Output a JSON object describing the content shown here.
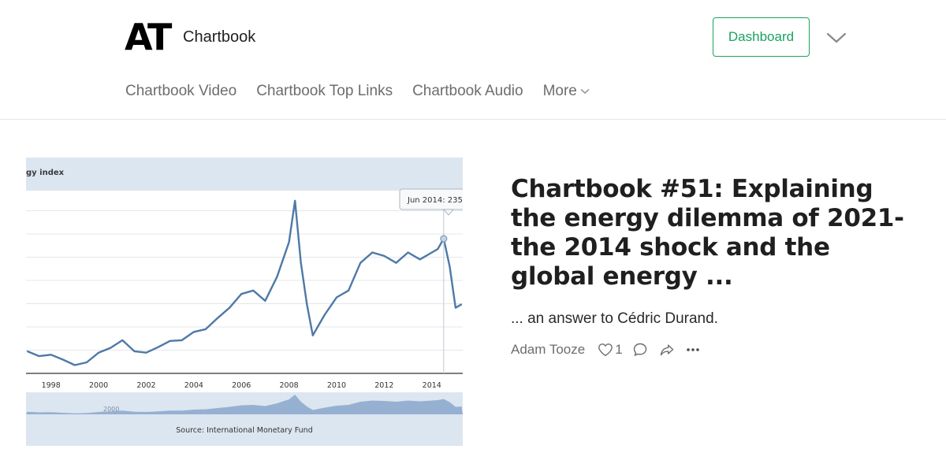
{
  "header": {
    "logo": "AT",
    "publication": "Chartbook",
    "dashboard_label": "Dashboard",
    "menu_icon": "chevron-down-icon"
  },
  "nav": {
    "items": [
      "Chartbook Video",
      "Chartbook Top Links",
      "Chartbook Audio"
    ],
    "more_label": "More"
  },
  "post": {
    "title": "Chartbook #51: Explaining the energy dilemma of 2021- the 2014 shock and the global energy ...",
    "subtitle": "... an answer to Cédric Durand.",
    "author": "Adam Tooze",
    "like_count": "1"
  },
  "chart_data": {
    "type": "line",
    "title": "gy index",
    "source": "Source: International Monetary Fund",
    "tooltip": "Jun 2014: 235.1",
    "x_tick_labels": [
      "1998",
      "2000",
      "2002",
      "2004",
      "2006",
      "2008",
      "2010",
      "2012",
      "2014"
    ],
    "navigator_label": "2000",
    "colors": {
      "line": "#4e79a7",
      "plot_bg": "#ffffff",
      "frame_bg": "#dce6f1",
      "navigator_fill": "#8aa6cc"
    },
    "series": [
      {
        "x": [
          1997.0,
          1997.5,
          1998.0,
          1998.5,
          1999.0,
          1999.5,
          2000.0,
          2000.5,
          2001.0,
          2001.5,
          2002.0,
          2002.5,
          2003.0,
          2003.5,
          2004.0,
          2004.5,
          2005.0,
          2005.5,
          2006.0,
          2006.5,
          2007.0,
          2007.5,
          2008.0,
          2008.25,
          2008.5,
          2008.75,
          2009.0,
          2009.25,
          2009.5,
          2010.0,
          2010.5,
          2011.0,
          2011.5,
          2012.0,
          2012.5,
          2013.0,
          2013.5,
          2014.0,
          2014.25,
          2014.5,
          2014.75,
          2015.0,
          2015.25
        ],
        "y": [
          72,
          65,
          67,
          60,
          52,
          56,
          70,
          77,
          88,
          72,
          70,
          78,
          87,
          88,
          100,
          104,
          120,
          135,
          155,
          160,
          145,
          180,
          230,
          290,
          200,
          140,
          95,
          110,
          125,
          150,
          160,
          200,
          215,
          210,
          200,
          215,
          205,
          215,
          220,
          235,
          195,
          135,
          140
        ]
      }
    ]
  }
}
